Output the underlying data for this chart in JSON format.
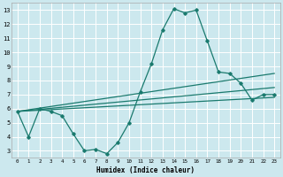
{
  "xlabel": "Humidex (Indice chaleur)",
  "bg_color": "#cce8ee",
  "line_color": "#1a7a6e",
  "grid_color": "#ffffff",
  "xlim": [
    -0.5,
    23.5
  ],
  "ylim": [
    2.5,
    13.5
  ],
  "xticks": [
    0,
    1,
    2,
    3,
    4,
    5,
    6,
    7,
    8,
    9,
    10,
    11,
    12,
    13,
    14,
    15,
    16,
    17,
    18,
    19,
    20,
    21,
    22,
    23
  ],
  "yticks": [
    3,
    4,
    5,
    6,
    7,
    8,
    9,
    10,
    11,
    12,
    13
  ],
  "main_line": {
    "x": [
      0,
      1,
      2,
      3,
      4,
      5,
      6,
      7,
      8,
      9,
      10,
      11,
      12,
      13,
      14,
      15,
      16,
      17,
      18,
      19,
      20,
      21,
      22,
      23
    ],
    "y": [
      5.8,
      4.0,
      6.0,
      5.8,
      5.5,
      4.2,
      3.0,
      3.1,
      2.8,
      3.6,
      5.0,
      7.2,
      9.2,
      11.6,
      13.1,
      12.8,
      13.0,
      10.8,
      8.6,
      8.5,
      7.8,
      6.6,
      7.0,
      7.0
    ]
  },
  "trend_lines": [
    {
      "x": [
        0,
        23
      ],
      "y": [
        5.8,
        8.5
      ]
    },
    {
      "x": [
        0,
        23
      ],
      "y": [
        5.8,
        7.5
      ]
    },
    {
      "x": [
        0,
        23
      ],
      "y": [
        5.8,
        6.8
      ]
    }
  ]
}
